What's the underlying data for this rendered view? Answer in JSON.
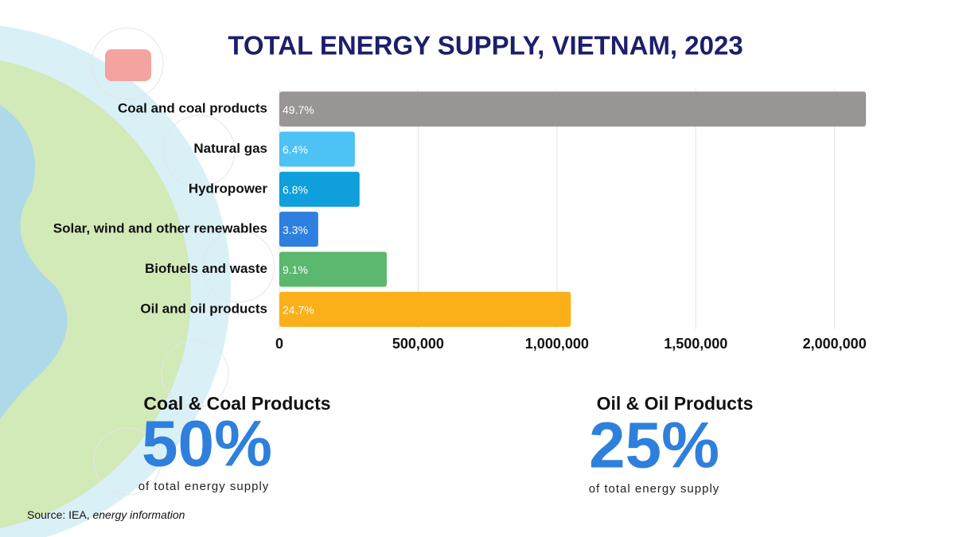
{
  "chart_data": {
    "type": "bar",
    "orientation": "horizontal",
    "title": "TOTAL ENERGY SUPPLY, VIETNAM, 2023",
    "categories": [
      "Coal and coal products",
      "Natural gas",
      "Hydropower",
      "Solar, wind and other renewables",
      "Biofuels and waste",
      "Oil and oil products"
    ],
    "values": [
      2113000,
      272000,
      289000,
      140000,
      387000,
      1050000
    ],
    "value_labels": [
      "49.7%",
      "6.4%",
      "6.8%",
      "3.3%",
      "9.1%",
      "24.7%"
    ],
    "colors": [
      "#9a9595",
      "#4cc2f5",
      "#0e9fdc",
      "#2e7fde",
      "#5bb86e",
      "#fbaf19"
    ],
    "xlim": [
      0,
      2150000
    ],
    "xticks": [
      0,
      {
        "value": 500000,
        "label": "500,000"
      },
      {
        "value": 1000000,
        "label": "1,000,000"
      },
      {
        "value": 1500000,
        "label": "1,500,000"
      },
      {
        "value": 2000000,
        "label": "2,000,000"
      }
    ],
    "grid": true
  },
  "highlights": [
    {
      "heading": "Coal & Coal Products",
      "figure": "50%",
      "caption": "of total energy supply"
    },
    {
      "heading": "Oil & Oil Products",
      "figure": "25%",
      "caption": "of total energy supply"
    }
  ],
  "source": {
    "text": "Source: IEA,",
    "italic": "energy information"
  }
}
